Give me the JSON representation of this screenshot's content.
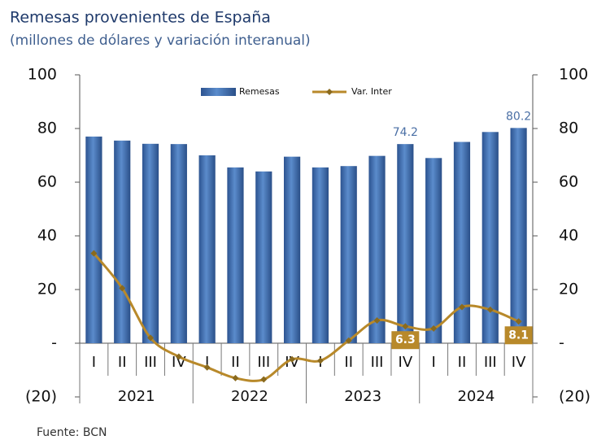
{
  "chart_data": {
    "type": "bar_line",
    "title": "Remesas provenientes de España",
    "subtitle": "(millones de dólares y variación interanual)",
    "source": "Fuente: BCN",
    "categories": [
      "I",
      "II",
      "III",
      "IV",
      "I",
      "II",
      "III",
      "IV",
      "I",
      "II",
      "III",
      "IV",
      "I",
      "II",
      "III",
      "IV"
    ],
    "x_groups": [
      "2021",
      "2022",
      "2023",
      "2024"
    ],
    "series": [
      {
        "name": "Remesas",
        "type": "bar",
        "color": "#3d6aa8",
        "axis": "y",
        "values": [
          77,
          75.5,
          74.3,
          74.2,
          70,
          65.5,
          64,
          69.5,
          65.5,
          66,
          69.8,
          74.2,
          69,
          75,
          78.7,
          80.2
        ],
        "value_labels": [
          null,
          null,
          null,
          null,
          null,
          null,
          null,
          null,
          null,
          null,
          null,
          "74.2",
          null,
          null,
          null,
          "80.2"
        ]
      },
      {
        "name": "Var. Inter",
        "type": "line",
        "color": "#b8892a",
        "axis": "y2",
        "values": [
          33.5,
          20.5,
          2,
          -5,
          -9,
          -13,
          -13.5,
          -6,
          -6.5,
          1,
          8.5,
          6.3,
          5.5,
          13.5,
          12.5,
          8.1
        ],
        "value_labels": [
          null,
          null,
          null,
          null,
          null,
          null,
          null,
          null,
          null,
          null,
          null,
          "6.3",
          null,
          null,
          null,
          "8.1"
        ]
      }
    ],
    "ylim": [
      -20,
      100
    ],
    "yticks": [
      {
        "value": -20,
        "label": "(20)"
      },
      {
        "value": 0,
        "label": "-"
      },
      20,
      40,
      60,
      80,
      100
    ],
    "y2lim": [
      -20,
      100
    ],
    "y2ticks": [
      {
        "value": -20,
        "label": "(20)"
      },
      {
        "value": 0,
        "label": "-"
      },
      20,
      40,
      60,
      80,
      100
    ],
    "legend": "top"
  }
}
